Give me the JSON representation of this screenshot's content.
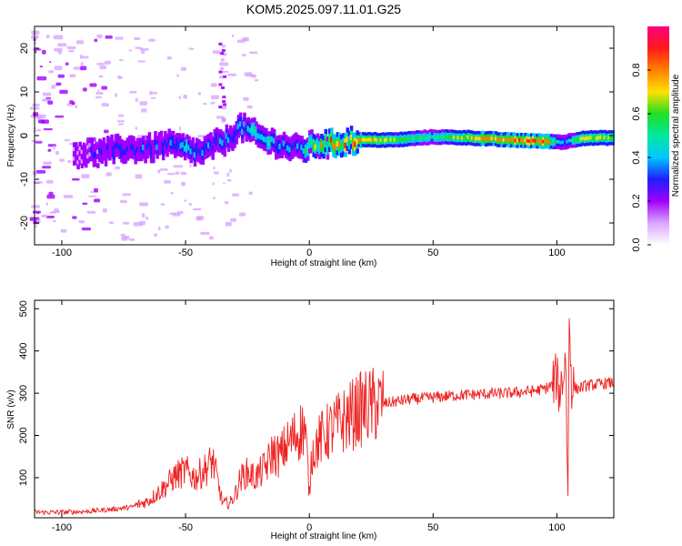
{
  "title": "KOM5.2025.097.11.01.G25",
  "chart_data": [
    {
      "type": "heatmap",
      "xlabel": "Height of straight line (km)",
      "ylabel": "Frequency (Hz)",
      "xlim": [
        -111,
        123
      ],
      "ylim": [
        -25,
        25
      ],
      "xticks": [
        -100,
        -50,
        0,
        50,
        100
      ],
      "yticks": [
        -20,
        -10,
        0,
        10,
        20
      ],
      "colorbar": {
        "label": "Normalized spectral amplitude",
        "ticks": [
          0.0,
          0.2,
          0.4,
          0.6,
          0.8
        ],
        "tick_labels": [
          "0.0",
          "0.2",
          "0.4",
          "0.6",
          "0.8"
        ],
        "range": [
          0,
          1
        ],
        "colormap": [
          "#ffffff",
          "#d9a6ff",
          "#a000ff",
          "#1e1eff",
          "#00c8ff",
          "#00e8a0",
          "#20e020",
          "#ffe000",
          "#ff8000",
          "#ff1a1a",
          "#ff0080"
        ]
      },
      "ridge": {
        "x": [
          -95,
          -85,
          -75,
          -65,
          -58,
          -50,
          -44,
          -38,
          -33,
          -28,
          -24,
          -18,
          -12,
          -6,
          -2,
          2,
          8,
          20,
          35,
          50,
          65,
          80,
          95,
          103,
          110,
          123
        ],
        "freq": [
          -4,
          -4,
          -3,
          -3,
          -2,
          -3,
          -4,
          -2,
          -1,
          2,
          1,
          -1,
          -2,
          -3,
          -3,
          -2,
          -2,
          -1,
          -1,
          -0.3,
          -0.5,
          -1,
          -1.3,
          -1.5,
          -0.6,
          -0.5
        ],
        "amplitude": [
          0.2,
          0.25,
          0.3,
          0.3,
          0.35,
          0.45,
          0.3,
          0.35,
          0.35,
          0.4,
          0.45,
          0.45,
          0.4,
          0.35,
          0.5,
          0.6,
          0.75,
          0.8,
          0.6,
          0.5,
          0.7,
          0.8,
          0.85,
          0.3,
          0.7,
          0.6
        ]
      }
    },
    {
      "type": "line",
      "xlabel": "Height of straight line (km)",
      "ylabel": "SNR (v/v)",
      "xlim": [
        -111,
        123
      ],
      "ylim": [
        5,
        520
      ],
      "xticks": [
        -100,
        -50,
        0,
        50,
        100
      ],
      "yticks": [
        100,
        200,
        300,
        400,
        500
      ],
      "color": "#ee2222",
      "series": [
        {
          "x": [
            -111,
            -100,
            -90,
            -80,
            -72,
            -65,
            -58,
            -54,
            -50,
            -46,
            -42,
            -39,
            -37,
            -35,
            -32,
            -30,
            -28,
            -26,
            -24,
            -22,
            -20,
            -17,
            -15,
            -12,
            -10,
            -7,
            -4,
            -2,
            -1,
            0,
            1,
            3,
            6,
            10,
            15,
            20,
            25,
            30,
            40,
            50,
            60,
            70,
            80,
            90,
            95,
            98,
            100,
            101,
            102,
            103,
            103.5,
            104,
            104.5,
            105,
            106,
            108,
            112,
            118,
            123
          ],
          "y": [
            18,
            18,
            20,
            25,
            30,
            45,
            80,
            105,
            115,
            100,
            120,
            140,
            90,
            40,
            40,
            60,
            95,
            110,
            110,
            100,
            110,
            130,
            160,
            150,
            170,
            190,
            210,
            220,
            160,
            60,
            160,
            180,
            200,
            220,
            240,
            260,
            270,
            275,
            285,
            290,
            295,
            298,
            300,
            305,
            310,
            320,
            340,
            300,
            330,
            350,
            420,
            200,
            60,
            480,
            320,
            310,
            318,
            322,
            325
          ]
        }
      ]
    }
  ]
}
